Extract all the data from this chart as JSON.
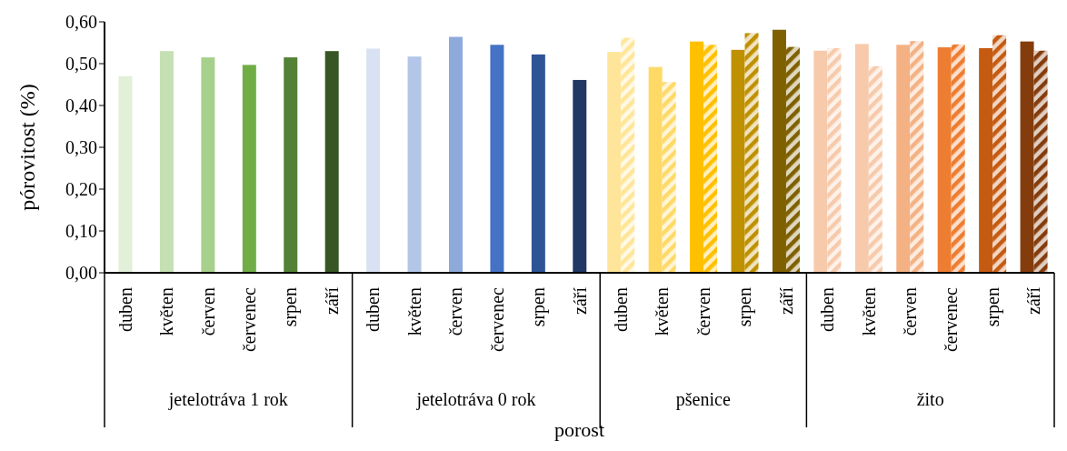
{
  "chart_data": {
    "type": "bar",
    "ylabel": "pórovitost (%)",
    "xlabel": "porost",
    "categories": [
      "duben",
      "květen",
      "červen",
      "červenec",
      "srpen",
      "září",
      "duben",
      "květen",
      "červen",
      "červenec",
      "srpen",
      "září",
      "duben",
      "květen",
      "červen",
      "srpen",
      "září",
      "duben",
      "květen",
      "červen",
      "červenec",
      "srpen",
      "září"
    ],
    "annotations": [
      "jetelotráva 1 rok",
      "jetelotráva 0 rok",
      "pšenice",
      "žito"
    ],
    "series": [
      {
        "colors": [
          "#e2efd9",
          "#c5e0b3",
          "#a8d08d",
          "#70ad47",
          "#538135",
          "#375623",
          "#d9e2f3",
          "#b4c6e7",
          "#8eaadb",
          "#4472c4",
          "#2f5496",
          "#1f3864",
          "#ffe599",
          "#ffd966",
          "#ffc000",
          "#bf9000",
          "#7f6000",
          "#f7caac",
          "#f7caac",
          "#f4b183",
          "#ed7d31",
          "#c55a11",
          "#843c0c"
        ],
        "values": [
          0.47,
          0.53,
          0.515,
          0.497,
          0.515,
          0.53,
          0.536,
          0.517,
          0.564,
          0.545,
          0.522,
          0.461,
          0.528,
          0.492,
          0.553,
          0.533,
          0.581,
          0.531,
          0.547,
          0.545,
          0.539,
          0.537,
          0.553
        ]
      },
      {
        "colors": [
          null,
          null,
          null,
          null,
          null,
          null,
          null,
          null,
          null,
          null,
          null,
          null,
          "#ffe599",
          "#ffd966",
          "#ffc000",
          "#bf9000",
          "#7f6000",
          "#f7caac",
          "#f7caac",
          "#f4b183",
          "#ed7d31",
          "#c55a11",
          "#843c0c"
        ],
        "values": [
          null,
          null,
          null,
          null,
          null,
          null,
          null,
          null,
          null,
          null,
          null,
          null,
          0.562,
          0.456,
          0.545,
          0.573,
          0.54,
          0.537,
          0.494,
          0.554,
          0.546,
          0.568,
          0.531
        ]
      }
    ],
    "ylim": [
      0,
      0.6
    ],
    "yticks": [
      {
        "value": 0,
        "label": "0,00"
      },
      {
        "value": 0.1,
        "label": "0,10"
      },
      {
        "value": 0.2,
        "label": "0,20"
      },
      {
        "value": 0.3,
        "label": "0,30"
      },
      {
        "value": 0.4,
        "label": "0,40"
      },
      {
        "value": 0.5,
        "label": "0,50"
      },
      {
        "value": 0.6,
        "label": "0,60"
      }
    ]
  }
}
